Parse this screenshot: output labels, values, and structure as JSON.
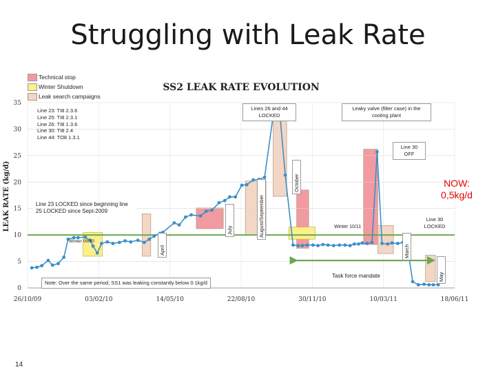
{
  "slide": {
    "title": "Struggling with Leak Rate",
    "page_number": "14"
  },
  "legend": [
    {
      "label": "Technical stop",
      "color": "#f19aa0"
    },
    {
      "label": "Winter Shutdown",
      "color": "#fdf08a"
    },
    {
      "label": "Leak search campaigns",
      "color": "#f3d6c4"
    }
  ],
  "line_info": [
    "Line 23: TI8 2.3.6",
    "Line 25: TI8 2.3.1",
    "Line 26: TI8 1.3.6",
    "Line 30: TI8 2.4",
    "Line 44: TO8 1.3.1"
  ],
  "annotations": {
    "lines_26_44": "Lines 26 and 44 LOCKED",
    "leaky_valve": "Leaky valve (filter case) in the cooling plant",
    "line30_off": "Line 30 OFF",
    "now": "NOW: 0,5kg/d",
    "line23_locked": "Line 23 LOCKED since beginning line 25 LOCKED since Sept-2009",
    "winter_0910": "Winter 09/10",
    "winter_1011": "Winter 10/11",
    "line30_locked": "Line 30 LOCKED",
    "task_force": "Task force mandate",
    "note": "Note: Over the same period, SS1 was leaking constantly below 0.1kg/d"
  },
  "months": {
    "april": "April",
    "july": "July",
    "aug_sep": "August/September",
    "october": "October",
    "march": "March",
    "may": "May"
  },
  "colors": {
    "series": "#3a8fc7",
    "reference_line": "#6aa84f",
    "technical_stop": "#f19aa0",
    "winter": "#fdf08a",
    "leak_search": "#f3d6c4"
  },
  "chart_data": {
    "type": "line",
    "title": "SS2 LEAK RATE EVOLUTION",
    "ylabel": "LEAK RATE (kg/d)",
    "xlabel": "",
    "ylim": [
      0,
      35
    ],
    "xlim": [
      "2009-10-26",
      "2011-06-18"
    ],
    "yticks": [
      0,
      5,
      10,
      15,
      20,
      25,
      30,
      35
    ],
    "xtick_labels": [
      "26/10/09",
      "03/02/10",
      "14/05/10",
      "22/08/10",
      "30/11/10",
      "10/03/11",
      "18/06/11"
    ],
    "grid": true,
    "reference_line_y": 10,
    "series": [
      {
        "x": [
          "2009-11-01",
          "2009-11-08",
          "2009-11-15",
          "2009-11-24",
          "2009-11-30",
          "2009-12-08",
          "2009-12-16",
          "2009-12-22",
          "2009-12-30",
          "2010-01-05",
          "2010-01-15",
          "2010-01-22",
          "2010-01-26",
          "2010-02-01",
          "2010-02-07",
          "2010-02-15",
          "2010-02-23",
          "2010-03-04",
          "2010-03-12",
          "2010-03-20",
          "2010-03-30",
          "2010-04-08",
          "2010-04-15",
          "2010-04-22",
          "2010-04-30",
          "2010-05-04",
          "2010-05-20",
          "2010-05-27",
          "2010-06-05",
          "2010-06-13",
          "2010-06-26",
          "2010-07-04",
          "2010-07-12",
          "2010-07-22",
          "2010-07-30",
          "2010-08-06",
          "2010-08-14",
          "2010-08-23",
          "2010-08-30",
          "2010-09-08",
          "2010-09-16",
          "2010-09-24",
          "2010-10-07",
          "2010-10-15",
          "2010-10-23",
          "2010-11-03",
          "2010-11-10",
          "2010-11-16",
          "2010-11-23",
          "2010-12-01",
          "2010-12-08",
          "2010-12-15",
          "2010-12-22",
          "2010-12-30",
          "2011-01-07",
          "2011-01-15",
          "2011-01-22",
          "2011-01-28",
          "2011-02-03",
          "2011-02-08",
          "2011-02-15",
          "2011-02-22",
          "2011-03-01",
          "2011-03-08",
          "2011-03-16",
          "2011-03-22",
          "2011-03-30",
          "2011-04-06",
          "2011-04-12",
          "2011-04-20",
          "2011-04-28",
          "2011-05-06",
          "2011-05-13",
          "2011-05-19",
          "2011-05-26"
        ],
        "values": [
          3.8,
          3.9,
          4.2,
          5.2,
          4.3,
          4.6,
          5.8,
          9.2,
          9.5,
          9.5,
          9.6,
          9.0,
          7.9,
          6.6,
          8.4,
          8.7,
          8.4,
          8.6,
          8.9,
          8.7,
          9.0,
          8.6,
          9.2,
          9.8,
          10.3,
          10.5,
          12.3,
          11.9,
          13.4,
          13.8,
          13.6,
          14.5,
          14.7,
          16.1,
          16.5,
          17.2,
          17.2,
          19.4,
          19.5,
          20.4,
          20.5,
          20.9,
          33.5,
          33.6,
          21.3,
          8.1,
          8.0,
          8.0,
          8.1,
          8.1,
          8.0,
          8.2,
          8.1,
          8.0,
          8.1,
          8.1,
          8.0,
          8.3,
          8.3,
          8.5,
          8.4,
          8.6,
          25.7,
          8.4,
          8.3,
          8.5,
          8.4,
          8.6,
          8.5,
          1.2,
          0.6,
          0.7,
          0.6,
          0.6,
          0.6
        ]
      }
    ]
  }
}
